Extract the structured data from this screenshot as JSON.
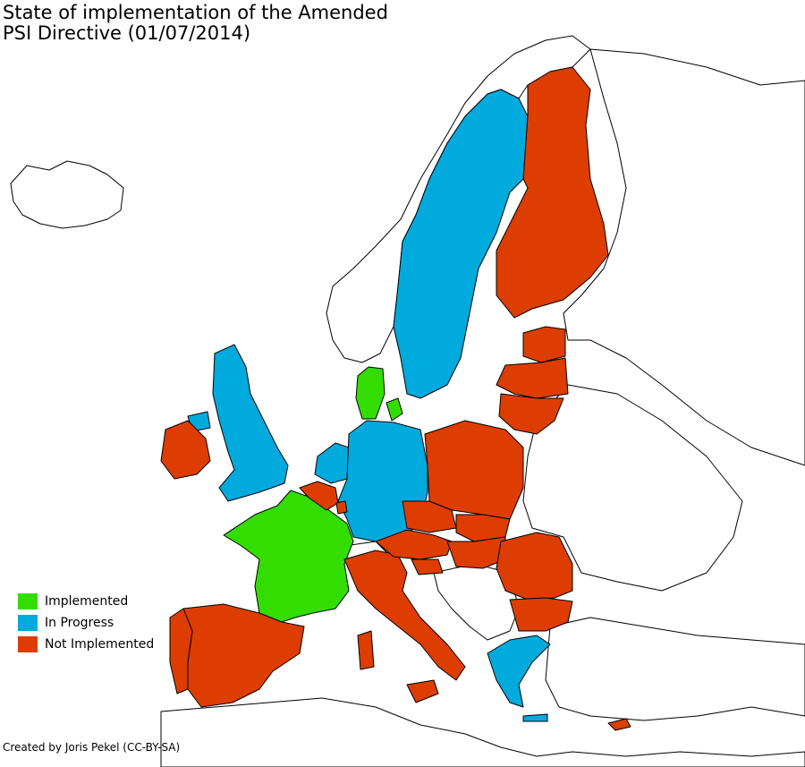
{
  "title_line1": "State of implementation of the Amended",
  "title_line2": "PSI Directive (01/07/2014)",
  "legend": [
    {
      "label": "Implemented",
      "color": "#33dd00"
    },
    {
      "label": "In Progress",
      "color": "#00aadd"
    },
    {
      "label": "Not Implemented",
      "color": "#dd3d00"
    }
  ],
  "credit": "Created by Joris Pekel (CC-BY-SA)",
  "countries": {
    "implemented": [
      "France",
      "Denmark"
    ],
    "in_progress": [
      "United Kingdom",
      "Sweden",
      "Germany",
      "Netherlands",
      "Greece"
    ],
    "not_implemented": [
      "Finland",
      "Ireland",
      "Spain",
      "Portugal",
      "Italy",
      "Belgium",
      "Luxembourg",
      "Poland",
      "Czech Republic",
      "Slovakia",
      "Hungary",
      "Austria",
      "Slovenia",
      "Romania",
      "Bulgaria",
      "Estonia",
      "Latvia",
      "Lithuania",
      "Cyprus"
    ]
  }
}
